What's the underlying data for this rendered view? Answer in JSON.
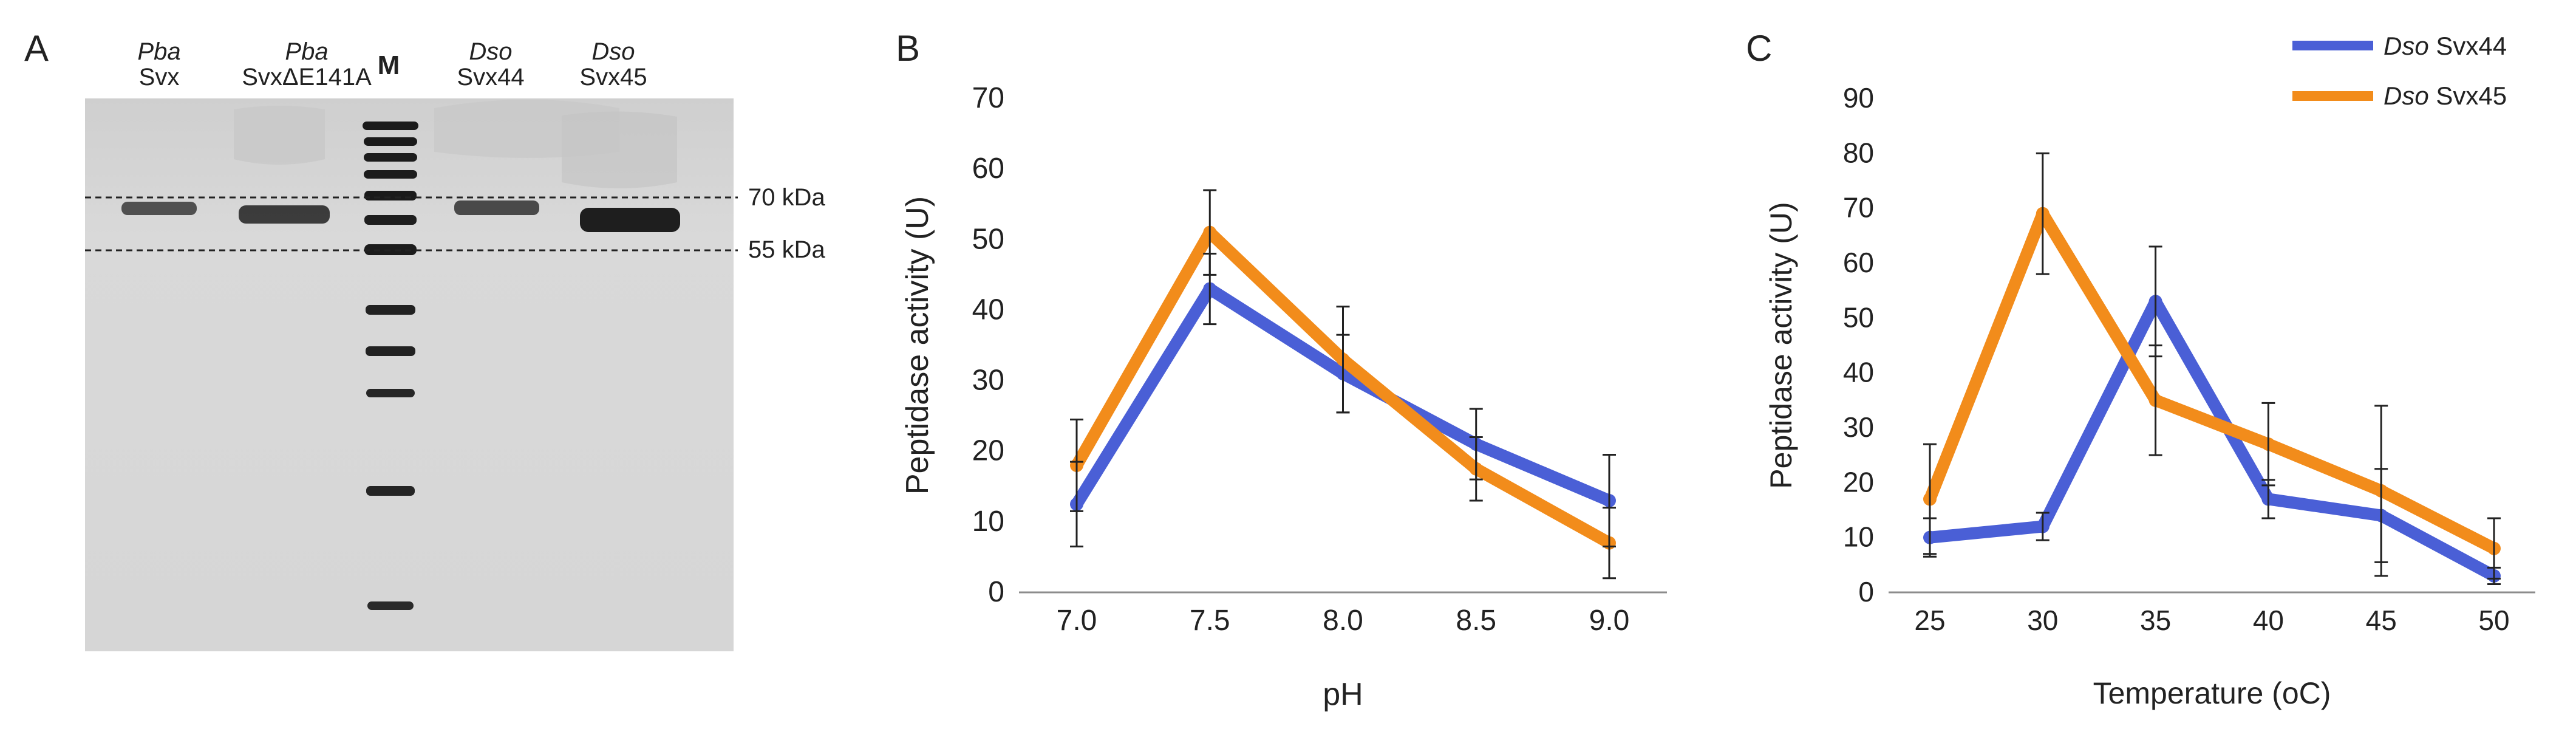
{
  "panels": {
    "a": {
      "letter": "A",
      "marker_label": "M",
      "lanes": [
        {
          "species": "Pba",
          "name": "Svx"
        },
        {
          "species": "Pba",
          "name": "SvxΔE141A"
        },
        {
          "species": "Dso",
          "name": "Svx44"
        },
        {
          "species": "Dso",
          "name": "Svx45"
        }
      ],
      "size_markers": [
        "70 kDa",
        "55 kDa"
      ]
    },
    "b": {
      "letter": "B"
    },
    "c": {
      "letter": "C"
    }
  },
  "legend": {
    "entries": [
      {
        "species": "Dso",
        "name": "Svx44",
        "color": "#4a5fd6"
      },
      {
        "species": "Dso",
        "name": "Svx45",
        "color": "#f28c1b"
      }
    ]
  },
  "chart_data": [
    {
      "id": "B",
      "type": "line",
      "xlabel": "pH",
      "ylabel": "Peptidase activity (U)",
      "categories": [
        "7.0",
        "7.5",
        "8.0",
        "8.5",
        "9.0"
      ],
      "ylim": [
        0,
        70
      ],
      "yticks": [
        0,
        10,
        20,
        30,
        40,
        50,
        60,
        70
      ],
      "series": [
        {
          "name": "Dso Svx44",
          "color": "#4a5fd6",
          "values": [
            12.5,
            43,
            31,
            21,
            13
          ],
          "errors": [
            6,
            5,
            5.5,
            5,
            6.5
          ]
        },
        {
          "name": "Dso Svx45",
          "color": "#f28c1b",
          "values": [
            18,
            51,
            33,
            17.5,
            7
          ],
          "errors": [
            6.5,
            6,
            7.5,
            4.5,
            5
          ]
        }
      ]
    },
    {
      "id": "C",
      "type": "line",
      "xlabel": "Temperature (oC)",
      "ylabel": "Peptidase activity (U)",
      "categories": [
        "25",
        "30",
        "35",
        "40",
        "45",
        "50"
      ],
      "ylim": [
        0,
        90
      ],
      "yticks": [
        0,
        10,
        20,
        30,
        40,
        50,
        60,
        70,
        80,
        90
      ],
      "series": [
        {
          "name": "Dso Svx44",
          "color": "#4a5fd6",
          "values": [
            10,
            12,
            53,
            17,
            14,
            3
          ],
          "errors": [
            3.5,
            2.5,
            10,
            3.5,
            8.5,
            1.5
          ]
        },
        {
          "name": "Dso Svx45",
          "color": "#f28c1b",
          "values": [
            17,
            69,
            35,
            27,
            18.5,
            8
          ],
          "errors": [
            10,
            11,
            10,
            7.5,
            15.5,
            5.5
          ]
        }
      ]
    }
  ]
}
